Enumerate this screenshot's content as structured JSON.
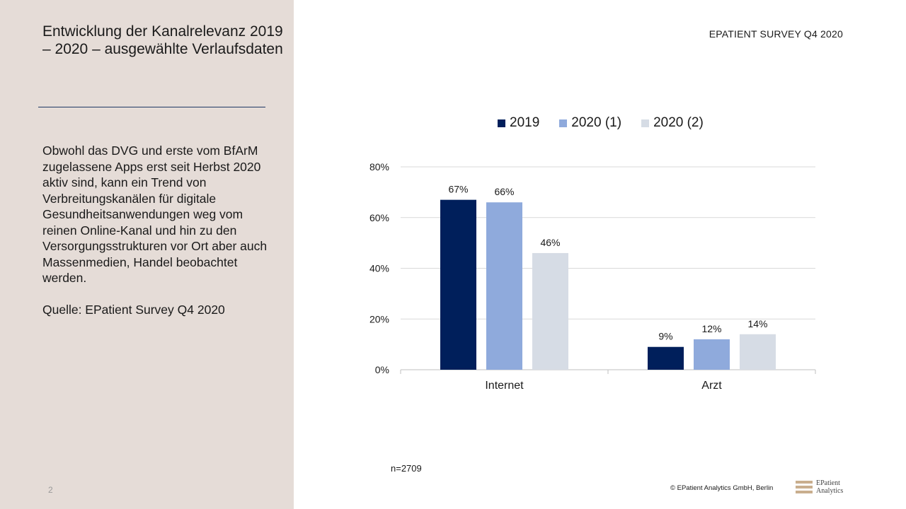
{
  "slide": {
    "title": "Entwicklung der Kanalrelevanz 2019 – 2020 – ausgewählte Verlaufsdaten",
    "body": "Obwohl das DVG und erste vom BfArM zugelassene Apps erst seit Herbst 2020 aktiv sind, kann ein Trend von Verbreitungskanälen für digitale Gesundheitsanwendungen weg vom reinen Online-Kanal und hin zu den Versorgungsstrukturen vor Ort aber auch Massenmedien, Handel beobachtet werden.",
    "source": "Quelle: EPatient Survey Q4 2020",
    "page_number": "2",
    "survey_label": "EPATIENT SURVEY Q4  2020",
    "sample_size": "n=2709",
    "copyright": "© EPatient Analytics GmbH, Berlin",
    "logo_line1": "EPatient",
    "logo_line2": "Analytics"
  },
  "colors": {
    "panel": "#e5dcd7",
    "series_2019": "#001f5b",
    "series_2020_1": "#8faadc",
    "series_2020_2": "#d6dce5",
    "grid": "#d9d9d9"
  },
  "chart_data": {
    "type": "bar",
    "categories": [
      "Internet",
      "Arzt"
    ],
    "series": [
      {
        "name": "2019",
        "values": [
          67,
          9
        ],
        "labels": [
          "67%",
          "9%"
        ]
      },
      {
        "name": "2020 (1)",
        "values": [
          66,
          12
        ],
        "labels": [
          "66%",
          "12%"
        ]
      },
      {
        "name": "2020 (2)",
        "values": [
          46,
          14
        ],
        "labels": [
          "46%",
          "14%"
        ]
      }
    ],
    "ylim": [
      0,
      80
    ],
    "yticks": [
      0,
      20,
      40,
      60,
      80
    ],
    "ytick_labels": [
      "0%",
      "20%",
      "40%",
      "60%",
      "80%"
    ],
    "grid": true,
    "legend": "top"
  }
}
